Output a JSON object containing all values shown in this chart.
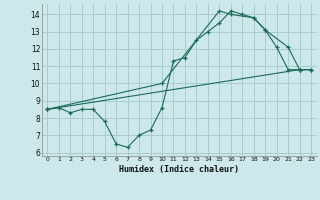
{
  "xlabel": "Humidex (Indice chaleur)",
  "bg_color": "#cce8ea",
  "grid_color": "#aacccc",
  "line_color": "#1a6b5a",
  "xlim": [
    -0.5,
    23.5
  ],
  "ylim": [
    5.8,
    14.6
  ],
  "xticks": [
    0,
    1,
    2,
    3,
    4,
    5,
    6,
    7,
    8,
    9,
    10,
    11,
    12,
    13,
    14,
    15,
    16,
    17,
    18,
    19,
    20,
    21,
    22,
    23
  ],
  "yticks": [
    6,
    7,
    8,
    9,
    10,
    11,
    12,
    13,
    14
  ],
  "line1_x": [
    0,
    1,
    2,
    3,
    4,
    5,
    6,
    7,
    8,
    9,
    10,
    11,
    12,
    13,
    14,
    15,
    16,
    17,
    18,
    19,
    20,
    21,
    22,
    23
  ],
  "line1_y": [
    8.5,
    8.6,
    8.3,
    8.5,
    8.5,
    7.8,
    6.5,
    6.3,
    7.0,
    7.3,
    8.6,
    11.3,
    11.5,
    12.5,
    13.0,
    13.5,
    14.2,
    14.0,
    13.8,
    13.1,
    12.1,
    10.8,
    10.8,
    10.8
  ],
  "line2_x": [
    0,
    10,
    15,
    16,
    18,
    19,
    21,
    22,
    23
  ],
  "line2_y": [
    8.5,
    10.0,
    14.2,
    14.0,
    13.8,
    13.1,
    12.1,
    10.8,
    10.8
  ],
  "line3_x": [
    0,
    22,
    23
  ],
  "line3_y": [
    8.5,
    10.8,
    10.8
  ]
}
